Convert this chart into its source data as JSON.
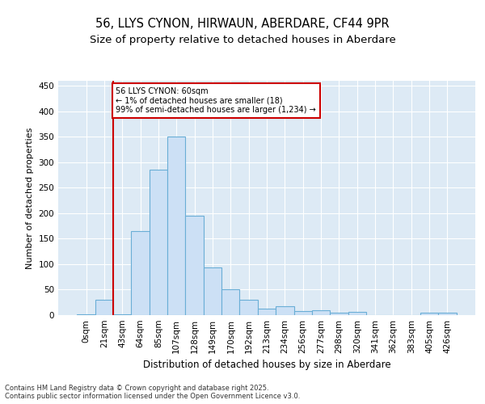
{
  "title1": "56, LLYS CYNON, HIRWAUN, ABERDARE, CF44 9PR",
  "title2": "Size of property relative to detached houses in Aberdare",
  "xlabel": "Distribution of detached houses by size in Aberdare",
  "ylabel": "Number of detached properties",
  "categories": [
    "0sqm",
    "21sqm",
    "43sqm",
    "64sqm",
    "85sqm",
    "107sqm",
    "128sqm",
    "149sqm",
    "170sqm",
    "192sqm",
    "213sqm",
    "234sqm",
    "256sqm",
    "277sqm",
    "298sqm",
    "320sqm",
    "341sqm",
    "362sqm",
    "383sqm",
    "405sqm",
    "426sqm"
  ],
  "values": [
    2,
    30,
    1,
    165,
    285,
    350,
    195,
    93,
    50,
    30,
    12,
    17,
    8,
    10,
    5,
    6,
    0,
    0,
    0,
    5,
    5
  ],
  "bar_color": "#cce0f5",
  "bar_edge_color": "#6aaed6",
  "bar_linewidth": 0.8,
  "vline_x": 1.5,
  "vline_color": "#cc0000",
  "vline_linewidth": 1.5,
  "annotation_text": "56 LLYS CYNON: 60sqm\n← 1% of detached houses are smaller (18)\n99% of semi-detached houses are larger (1,234) →",
  "annotation_box_color": "#cc0000",
  "annotation_text_fontsize": 7,
  "ylim": [
    0,
    460
  ],
  "yticks": [
    0,
    50,
    100,
    150,
    200,
    250,
    300,
    350,
    400,
    450
  ],
  "background_color": "#ddeaf5",
  "grid_color": "#ffffff",
  "footer_text": "Contains HM Land Registry data © Crown copyright and database right 2025.\nContains public sector information licensed under the Open Government Licence v3.0.",
  "title1_fontsize": 10.5,
  "title2_fontsize": 9.5,
  "ylabel_fontsize": 8,
  "xlabel_fontsize": 8.5,
  "tick_fontsize": 7.5,
  "footer_fontsize": 6
}
